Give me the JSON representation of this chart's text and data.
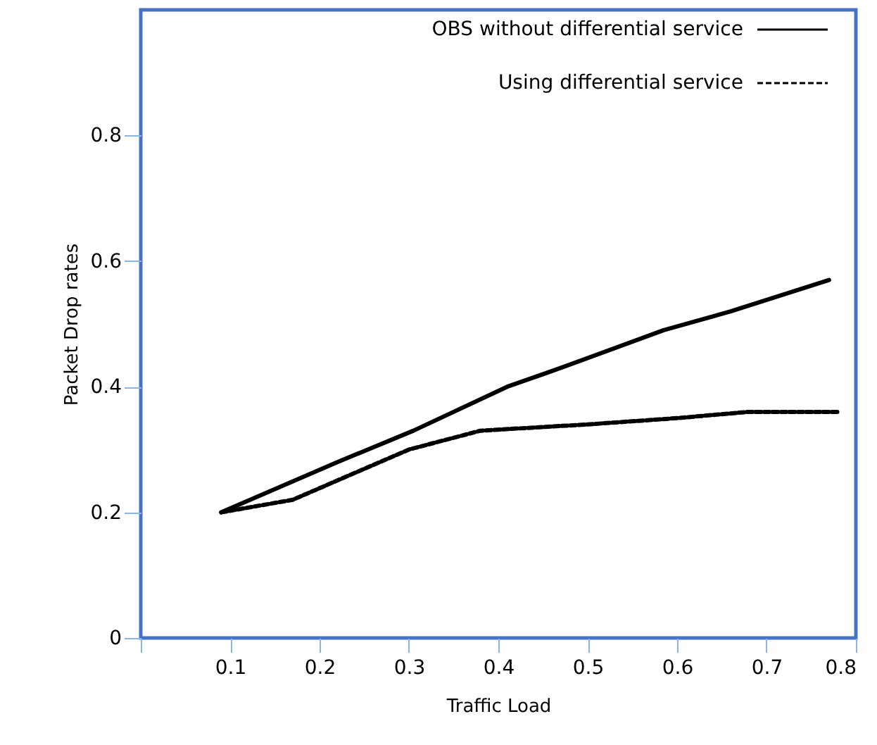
{
  "chart_data": {
    "type": "line",
    "xlabel": "Traffic Load",
    "ylabel": "Packet Drop rates",
    "xlim": [
      0,
      0.8
    ],
    "ylim": [
      0,
      1.0
    ],
    "xticks": [
      {
        "value": 0,
        "label": null
      },
      0.1,
      0.2,
      0.3,
      0.4,
      0.5,
      0.6,
      0.7,
      0.8
    ],
    "yticks": [
      0,
      0.2,
      0.4,
      0.6,
      0.8
    ],
    "legend": "top right",
    "grid": false,
    "series": [
      {
        "name": "OBS without  differential service",
        "color": "#000000",
        "line_style": "solid",
        "x": [
          0.09,
          0.22,
          0.305,
          0.41,
          0.47,
          0.585,
          0.66,
          0.77
        ],
        "values": [
          0.2,
          0.28,
          0.33,
          0.4,
          0.43,
          0.49,
          0.52,
          0.57
        ]
      },
      {
        "name": "Using differential service",
        "color": "#000000",
        "line_style": "dashed",
        "x": [
          0.09,
          0.17,
          0.3,
          0.38,
          0.5,
          0.6,
          0.68,
          0.78
        ],
        "values": [
          0.2,
          0.22,
          0.3,
          0.33,
          0.34,
          0.35,
          0.36,
          0.36
        ]
      }
    ]
  }
}
